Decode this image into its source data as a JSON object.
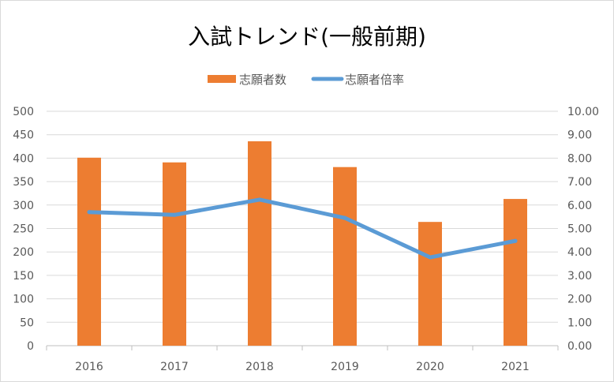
{
  "chart_data": {
    "type": "bar",
    "title": "入試トレンド(一般前期)",
    "categories": [
      "2016",
      "2017",
      "2018",
      "2019",
      "2020",
      "2021"
    ],
    "series": [
      {
        "name": "志願者数",
        "type": "bar",
        "axis": "left",
        "color": "#ED7D31",
        "values": [
          401,
          391,
          436,
          381,
          264,
          313
        ]
      },
      {
        "name": "志願者倍率",
        "type": "line",
        "axis": "right",
        "color": "#5B9BD5",
        "values": [
          5.7,
          5.58,
          6.23,
          5.45,
          3.77,
          4.47
        ]
      }
    ],
    "y_left": {
      "range": [
        0,
        500
      ],
      "ticks": [
        "0",
        "50",
        "100",
        "150",
        "200",
        "250",
        "300",
        "350",
        "400",
        "450",
        "500"
      ]
    },
    "y_right": {
      "range": [
        0,
        10
      ],
      "ticks": [
        "0.00",
        "1.00",
        "2.00",
        "3.00",
        "4.00",
        "5.00",
        "6.00",
        "7.00",
        "8.00",
        "9.00",
        "10.00"
      ]
    },
    "grid": true,
    "legend_position": "top"
  }
}
